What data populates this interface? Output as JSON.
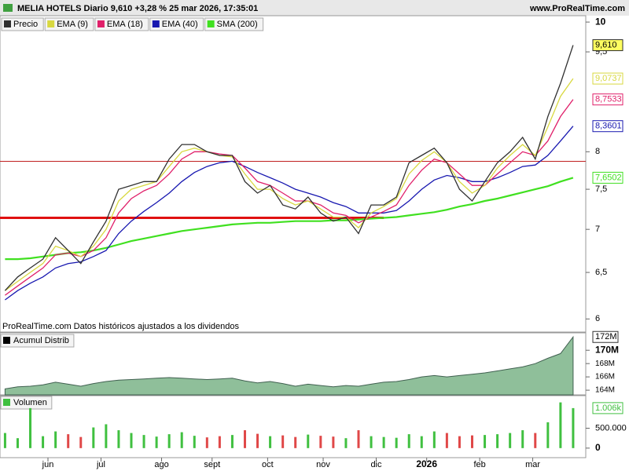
{
  "header": {
    "title": "MELIA HOTELS Diario 9,610 +3,28 % 25 mar 2026, 17:35:01",
    "site": "www.ProRealTime.com"
  },
  "footer_note": "ProRealTime.com  Datos históricos ajustados a los dividendos",
  "chart_data": [
    {
      "type": "line",
      "title": "Precio",
      "log_scale": true,
      "x": [
        2,
        7,
        12,
        17,
        22,
        27,
        32,
        37,
        42,
        47,
        52,
        57,
        62,
        67,
        72,
        77,
        82,
        87,
        92,
        97,
        102,
        107,
        112,
        117,
        122,
        127,
        132,
        137,
        142,
        147,
        152,
        157,
        162,
        167,
        172,
        177,
        182,
        187,
        192,
        197,
        202,
        207,
        212,
        217,
        222,
        227
      ],
      "xlim": [
        0,
        232
      ],
      "xticks": [
        {
          "value": 19,
          "label": "jun"
        },
        {
          "value": 40,
          "label": "jul"
        },
        {
          "value": 64,
          "label": "ago"
        },
        {
          "value": 84,
          "label": "sept"
        },
        {
          "value": 106,
          "label": "oct"
        },
        {
          "value": 128,
          "label": "nov"
        },
        {
          "value": 149,
          "label": "dic"
        },
        {
          "value": 169,
          "label": "2026"
        },
        {
          "value": 190,
          "label": "feb"
        },
        {
          "value": 211,
          "label": "mar"
        }
      ],
      "ylim": [
        5.89,
        10.11
      ],
      "yticks": [
        10,
        {
          "value": 9.5,
          "label": "9,5"
        },
        8,
        {
          "value": 7.5,
          "label": "7,5"
        },
        7,
        {
          "value": 6.5,
          "label": "6,5"
        },
        6
      ],
      "series": [
        {
          "name": "Precio",
          "color": "#303030",
          "values": [
            6.3,
            6.45,
            6.55,
            6.65,
            6.9,
            6.75,
            6.6,
            6.85,
            7.1,
            7.5,
            7.55,
            7.6,
            7.6,
            7.9,
            8.1,
            8.1,
            8.0,
            7.95,
            7.95,
            7.6,
            7.45,
            7.55,
            7.3,
            7.25,
            7.4,
            7.2,
            7.1,
            7.15,
            6.95,
            7.3,
            7.3,
            7.4,
            7.85,
            7.95,
            8.05,
            7.85,
            7.5,
            7.35,
            7.6,
            7.85,
            8.0,
            8.2,
            7.9,
            8.5,
            9.0,
            9.61
          ],
          "last_label": "9,610",
          "label_bg": "#ffff60"
        },
        {
          "name": "EMA (9)",
          "color": "#d8d840",
          "values": [
            6.3,
            6.4,
            6.5,
            6.6,
            6.8,
            6.75,
            6.68,
            6.8,
            7.0,
            7.35,
            7.5,
            7.55,
            7.6,
            7.8,
            8.0,
            8.05,
            8.0,
            7.95,
            7.93,
            7.7,
            7.5,
            7.5,
            7.38,
            7.3,
            7.35,
            7.25,
            7.15,
            7.15,
            7.02,
            7.2,
            7.28,
            7.38,
            7.7,
            7.88,
            8.0,
            7.85,
            7.6,
            7.45,
            7.55,
            7.78,
            7.95,
            8.1,
            7.95,
            8.35,
            8.8,
            9.0737
          ],
          "last_label": "9,0737"
        },
        {
          "name": "EMA (18)",
          "color": "#e0206a",
          "values": [
            6.25,
            6.35,
            6.45,
            6.55,
            6.7,
            6.72,
            6.68,
            6.75,
            6.9,
            7.2,
            7.38,
            7.48,
            7.55,
            7.7,
            7.9,
            8.0,
            8.0,
            7.97,
            7.95,
            7.78,
            7.6,
            7.55,
            7.45,
            7.35,
            7.35,
            7.3,
            7.2,
            7.17,
            7.08,
            7.15,
            7.22,
            7.3,
            7.55,
            7.75,
            7.9,
            7.85,
            7.7,
            7.55,
            7.55,
            7.7,
            7.85,
            8.0,
            7.95,
            8.15,
            8.5,
            8.7533
          ],
          "last_label": "8,7533"
        },
        {
          "name": "EMA (40)",
          "color": "#1818b0",
          "values": [
            6.2,
            6.3,
            6.38,
            6.45,
            6.55,
            6.6,
            6.62,
            6.68,
            6.75,
            6.95,
            7.1,
            7.22,
            7.33,
            7.45,
            7.6,
            7.72,
            7.8,
            7.85,
            7.87,
            7.8,
            7.72,
            7.65,
            7.58,
            7.5,
            7.45,
            7.4,
            7.33,
            7.28,
            7.2,
            7.2,
            7.2,
            7.23,
            7.35,
            7.5,
            7.62,
            7.68,
            7.65,
            7.6,
            7.6,
            7.65,
            7.72,
            7.8,
            7.82,
            7.95,
            8.15,
            8.3601
          ],
          "last_label": "8,3601"
        },
        {
          "name": "SMA (200)",
          "color": "#40e020",
          "values": [
            6.65,
            6.65,
            6.66,
            6.68,
            6.7,
            6.72,
            6.73,
            6.75,
            6.78,
            6.82,
            6.86,
            6.89,
            6.92,
            6.95,
            6.98,
            7.0,
            7.02,
            7.04,
            7.06,
            7.07,
            7.08,
            7.08,
            7.09,
            7.1,
            7.1,
            7.1,
            7.11,
            7.11,
            7.12,
            7.13,
            7.14,
            7.15,
            7.17,
            7.19,
            7.21,
            7.24,
            7.28,
            7.31,
            7.35,
            7.38,
            7.42,
            7.46,
            7.5,
            7.54,
            7.6,
            7.6502
          ],
          "last_label": "7,6502"
        }
      ],
      "hlines": [
        {
          "value": 7.87,
          "color": "#c02020",
          "to_x": 232
        },
        {
          "value": 7.14,
          "color": "#e01010",
          "to_x": 152
        }
      ]
    },
    {
      "type": "area",
      "title": "Acumul Distrib",
      "color": "#8fbf9a",
      "values": [
        164200000,
        164500000,
        164600000,
        164800000,
        165200000,
        164900000,
        164600000,
        165000000,
        165300000,
        165500000,
        165600000,
        165700000,
        165800000,
        165900000,
        165800000,
        165700000,
        165600000,
        165700000,
        165800000,
        165400000,
        165100000,
        165300000,
        165000000,
        164600000,
        164900000,
        164700000,
        164500000,
        164700000,
        164600000,
        164900000,
        165200000,
        165300000,
        165600000,
        166000000,
        166200000,
        166000000,
        166200000,
        166400000,
        166600000,
        166900000,
        167200000,
        167500000,
        168000000,
        168800000,
        169500000,
        172000000
      ],
      "last_label": "172M",
      "ylim": [
        163300000,
        172500000
      ],
      "yticks": [
        {
          "value": 170000000,
          "label": "170M"
        },
        {
          "value": 168000000,
          "label": "168M"
        },
        {
          "value": 166000000,
          "label": "166M"
        },
        {
          "value": 164000000,
          "label": "164M"
        }
      ]
    },
    {
      "type": "bar",
      "title": "Volumen",
      "up_color": "#40c040",
      "down_color": "#e04848",
      "values": [
        380000,
        250000,
        1006000,
        300000,
        420000,
        350000,
        280000,
        520000,
        600000,
        450000,
        380000,
        330000,
        290000,
        350000,
        400000,
        310000,
        270000,
        300000,
        330000,
        450000,
        360000,
        300000,
        320000,
        280000,
        340000,
        310000,
        290000,
        250000,
        450000,
        300000,
        280000,
        260000,
        350000,
        300000,
        420000,
        380000,
        300000,
        320000,
        330000,
        350000,
        380000,
        450000,
        380000,
        650000,
        1150000,
        1006000
      ],
      "last_label": "1.006k",
      "ylim": [
        -240000,
        1300000
      ],
      "yticks": [
        {
          "value": 500000,
          "label": "500.000"
        },
        0
      ]
    }
  ]
}
